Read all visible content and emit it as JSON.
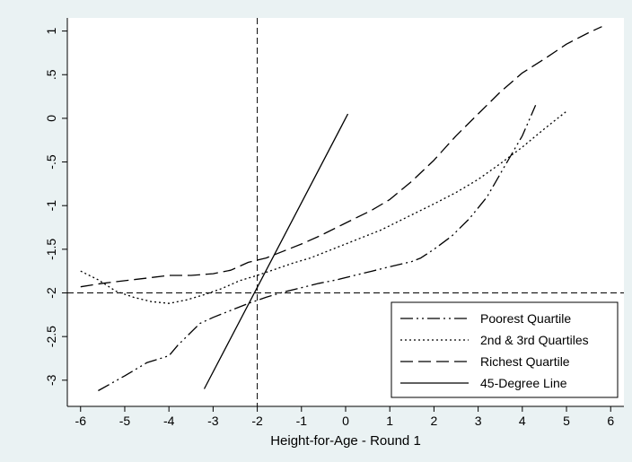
{
  "chart_data": {
    "type": "line",
    "title": "",
    "xlabel": "Height-for-Age - Round 1",
    "ylabel": "",
    "xlim": [
      -6.3,
      6.3
    ],
    "ylim": [
      -3.3,
      1.15
    ],
    "xticks": [
      -6,
      -5,
      -4,
      -3,
      -2,
      -1,
      0,
      1,
      2,
      3,
      4,
      5,
      6
    ],
    "xtick_labels": [
      "-6",
      "-5",
      "-4",
      "-3",
      "-2",
      "-1",
      "0",
      "1",
      "2",
      "3",
      "4",
      "5",
      "6"
    ],
    "yticks": [
      1,
      0.5,
      0,
      -0.5,
      -1,
      -1.5,
      -2,
      -2.5,
      -3
    ],
    "ytick_labels": [
      "1",
      ".5",
      "0",
      "-.5",
      "-1",
      "-1.5",
      "-2",
      "-2.5",
      "-3"
    ],
    "reference_lines": [
      {
        "orientation": "vertical",
        "value": -2,
        "style": "dashed"
      },
      {
        "orientation": "horizontal",
        "value": -2,
        "style": "dashed"
      }
    ],
    "legend_position": "bottom-right",
    "series": [
      {
        "name": "Poorest Quartile",
        "style": "dash-dot-dot",
        "color": "#000000",
        "x": [
          -5.6,
          -5.0,
          -4.5,
          -4.0,
          -3.8,
          -3.6,
          -3.3,
          -3.0,
          -2.6,
          -2.2,
          -1.8,
          -1.4,
          -1.0,
          -0.6,
          -0.2,
          0.2,
          0.6,
          1.0,
          1.5,
          1.7,
          2.0,
          2.4,
          2.8,
          3.2,
          3.6,
          4.0,
          4.3
        ],
        "y": [
          -3.12,
          -2.95,
          -2.8,
          -2.72,
          -2.6,
          -2.5,
          -2.35,
          -2.28,
          -2.2,
          -2.12,
          -2.05,
          -1.99,
          -1.94,
          -1.89,
          -1.85,
          -1.8,
          -1.75,
          -1.7,
          -1.64,
          -1.6,
          -1.5,
          -1.35,
          -1.15,
          -0.9,
          -0.55,
          -0.2,
          0.15
        ]
      },
      {
        "name": "2nd & 3rd Quartiles",
        "style": "dotted",
        "color": "#000000",
        "x": [
          -6.0,
          -5.6,
          -5.2,
          -4.8,
          -4.4,
          -4.0,
          -3.6,
          -3.2,
          -2.8,
          -2.4,
          -2.0,
          -1.6,
          -1.2,
          -0.8,
          -0.4,
          0.0,
          0.4,
          0.8,
          1.2,
          1.6,
          2.0,
          2.5,
          3.0,
          3.5,
          4.0,
          4.5,
          5.0
        ],
        "y": [
          -1.75,
          -1.85,
          -1.98,
          -2.05,
          -2.1,
          -2.12,
          -2.08,
          -2.02,
          -1.95,
          -1.86,
          -1.8,
          -1.73,
          -1.66,
          -1.6,
          -1.52,
          -1.44,
          -1.36,
          -1.28,
          -1.18,
          -1.08,
          -0.98,
          -0.85,
          -0.7,
          -0.52,
          -0.33,
          -0.12,
          0.08
        ]
      },
      {
        "name": "Richest Quartile",
        "style": "long-dash",
        "color": "#000000",
        "x": [
          -6.0,
          -5.5,
          -5.0,
          -4.5,
          -4.0,
          -3.5,
          -3.0,
          -2.6,
          -2.2,
          -1.8,
          -1.4,
          -1.0,
          -0.6,
          -0.2,
          0.2,
          0.6,
          1.0,
          1.5,
          2.0,
          2.5,
          3.0,
          3.5,
          4.0,
          4.5,
          5.0,
          5.5,
          5.8
        ],
        "y": [
          -1.93,
          -1.89,
          -1.86,
          -1.83,
          -1.8,
          -1.8,
          -1.78,
          -1.74,
          -1.65,
          -1.6,
          -1.52,
          -1.44,
          -1.35,
          -1.25,
          -1.15,
          -1.05,
          -0.93,
          -0.72,
          -0.48,
          -0.2,
          0.05,
          0.3,
          0.52,
          0.68,
          0.85,
          0.98,
          1.05
        ]
      },
      {
        "name": "45-Degree Line",
        "style": "solid",
        "color": "#000000",
        "x": [
          -3.2,
          0.05
        ],
        "y": [
          -3.1,
          0.05
        ]
      }
    ]
  }
}
